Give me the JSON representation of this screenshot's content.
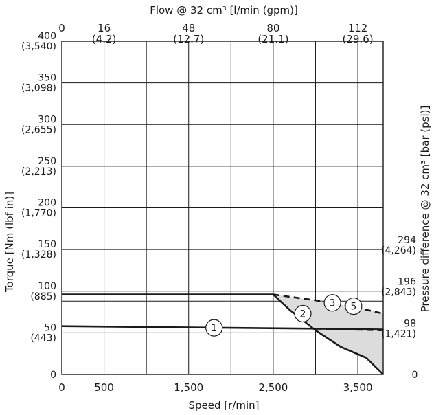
{
  "chart_data": {
    "type": "line",
    "xlabel": "Speed [r/min]",
    "ylabel": "Torque [Nm (lbf in)]",
    "top_axis_label": "Flow @ 32 cm³ [l/min (gpm)]",
    "right_axis_label": "Pressure difference @ 32 cm³ [bar (psi)]",
    "xlim": [
      0,
      3800
    ],
    "ylim": [
      0,
      400
    ],
    "x_ticks": [
      {
        "value": 0,
        "label": "0"
      },
      {
        "value": 500,
        "label": "500"
      },
      {
        "value": 1500,
        "label": "1,500"
      },
      {
        "value": 2500,
        "label": "2,500"
      },
      {
        "value": 3500,
        "label": "3,500"
      }
    ],
    "x_gridlines": [
      0,
      500,
      1000,
      1500,
      2000,
      2500,
      3000,
      3500,
      3800
    ],
    "y_ticks": [
      {
        "value": 0,
        "label": "0",
        "sub": ""
      },
      {
        "value": 50,
        "label": "50",
        "sub": "(443)"
      },
      {
        "value": 100,
        "label": "100",
        "sub": "(885)"
      },
      {
        "value": 150,
        "label": "150",
        "sub": "(1,328)"
      },
      {
        "value": 200,
        "label": "200",
        "sub": "(1,770)"
      },
      {
        "value": 250,
        "label": "250",
        "sub": "(2,213)"
      },
      {
        "value": 300,
        "label": "300",
        "sub": "(2,655)"
      },
      {
        "value": 350,
        "label": "350",
        "sub": "(3,098)"
      },
      {
        "value": 400,
        "label": "400",
        "sub": "(3,540)"
      }
    ],
    "y_gridlines": [
      50,
      88,
      92,
      100,
      150,
      200,
      250,
      300,
      350,
      400
    ],
    "top_ticks": [
      {
        "x": 0,
        "label": "0",
        "sub": ""
      },
      {
        "x": 500,
        "label": "16",
        "sub": "(4.2)"
      },
      {
        "x": 1500,
        "label": "48",
        "sub": "(12.7)"
      },
      {
        "x": 2500,
        "label": "80",
        "sub": "(21.1)"
      },
      {
        "x": 3500,
        "label": "112",
        "sub": "(29.6)"
      }
    ],
    "right_ticks": [
      {
        "y": 0,
        "label": "0",
        "sub": ""
      },
      {
        "y": 55,
        "label": "98",
        "sub": "(1,421)"
      },
      {
        "y": 105,
        "label": "196",
        "sub": "(2,843)"
      },
      {
        "y": 155,
        "label": "294",
        "sub": "(4,264)"
      }
    ],
    "series": [
      {
        "id": "1",
        "style": "solid",
        "x": [
          0,
          3000,
          3800
        ],
        "y": [
          58,
          55,
          54
        ]
      },
      {
        "id": "2",
        "style": "solid",
        "x": [
          2500,
          2700,
          3000,
          3300,
          3600,
          3800
        ],
        "y": [
          96,
          77,
          53,
          33,
          20,
          0
        ]
      },
      {
        "id": "3",
        "style": "solid",
        "x": [
          0,
          2440,
          2500
        ],
        "y": [
          96,
          96,
          96
        ]
      },
      {
        "id": "3-dashed",
        "style": "dashed",
        "x": [
          2500,
          3000,
          3500,
          3800
        ],
        "y": [
          96,
          89,
          80,
          73
        ]
      },
      {
        "id": "1-dashed",
        "style": "dashed",
        "x": [
          3000,
          3800
        ],
        "y": [
          55,
          53
        ]
      }
    ],
    "shaded_region": {
      "x": [
        2500,
        3000,
        3500,
        3800,
        3800,
        3600,
        3300,
        3000,
        2700
      ],
      "y": [
        96,
        89,
        80,
        73,
        0,
        20,
        33,
        53,
        77
      ],
      "color": "#dcdcdc"
    },
    "curve_labels": [
      {
        "text": "1",
        "x": 1800,
        "y": 56
      },
      {
        "text": "2",
        "x": 2850,
        "y": 73
      },
      {
        "text": "3",
        "x": 3200,
        "y": 86
      },
      {
        "text": "5",
        "x": 3450,
        "y": 82
      }
    ],
    "grid": true,
    "colors": {
      "line": "#1a1a1a",
      "grid": "#1a1a1a",
      "fill": "#dcdcdc"
    }
  }
}
